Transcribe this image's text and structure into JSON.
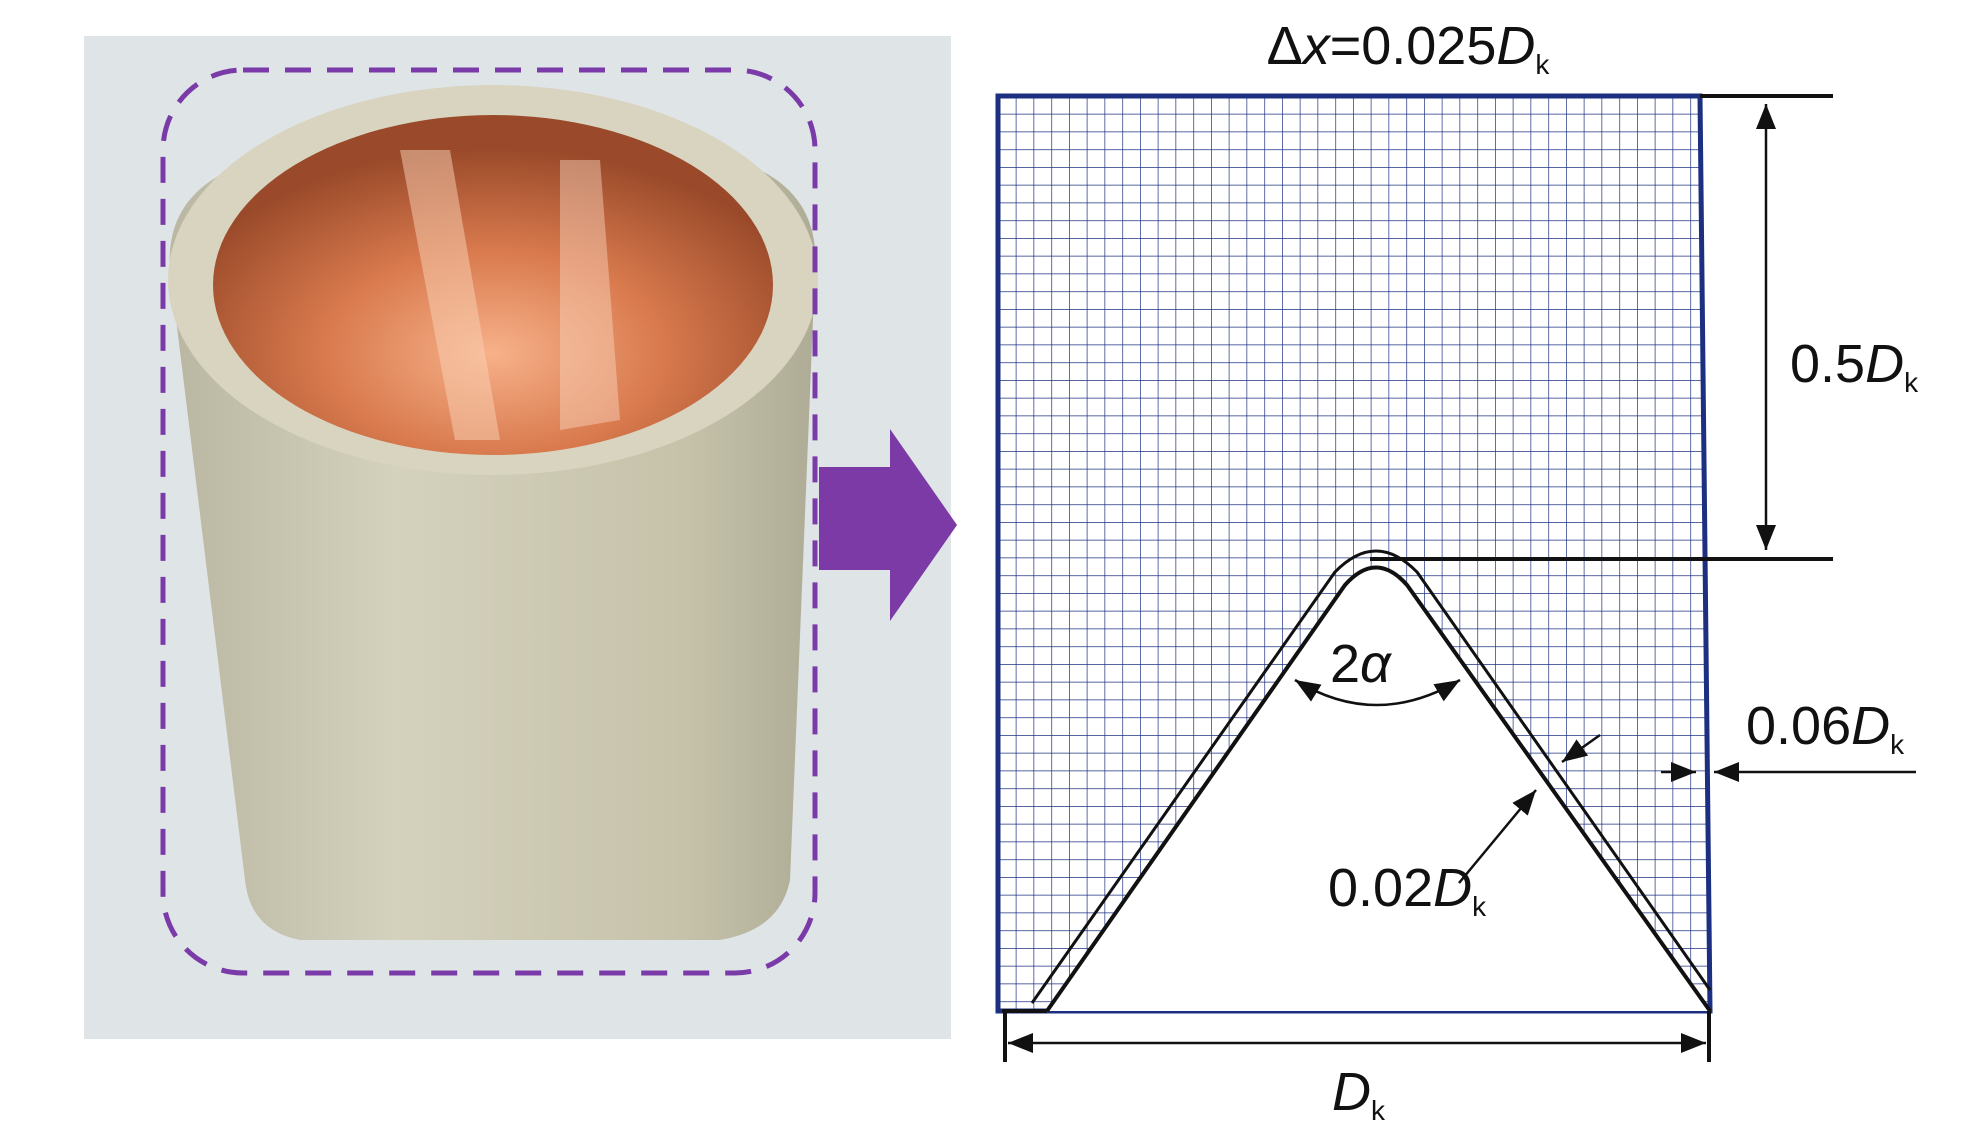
{
  "labels": {
    "cell_size": [
      "Δ",
      "x",
      "=0.025",
      "D",
      "k"
    ],
    "height": [
      "0.5",
      "D",
      "k"
    ],
    "wall": [
      "0.06",
      "D",
      "k"
    ],
    "angle": [
      "2",
      "α"
    ],
    "liner": [
      "0.02",
      "D",
      "k"
    ],
    "diameter": [
      "D",
      "k"
    ]
  }
}
